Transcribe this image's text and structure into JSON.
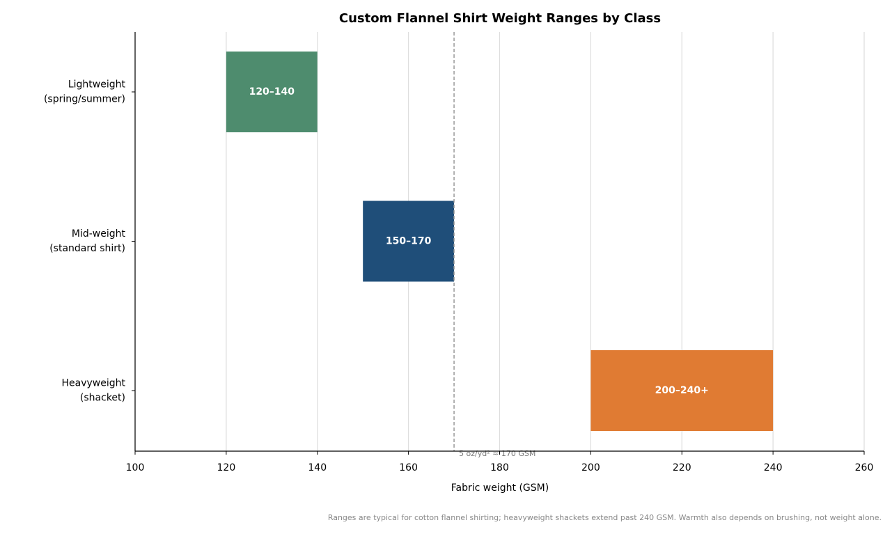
{
  "chart_data": {
    "type": "range-bar",
    "title": "Custom Flannel Shirt Weight Ranges by Class",
    "categories": [
      [
        "Lightweight",
        "(spring/summer)"
      ],
      [
        "Mid-weight",
        "(standard shirt)"
      ],
      [
        "Heavyweight",
        "(shacket)"
      ]
    ],
    "starts": [
      120,
      150,
      200
    ],
    "ends": [
      140,
      170,
      240
    ],
    "value_labels": [
      "120–140",
      "150–170",
      "200–240+"
    ],
    "colors": [
      "#4e8c6e",
      "#1f4e79",
      "#e07b33"
    ],
    "xlim": [
      100,
      260
    ],
    "xticks": [
      100,
      120,
      140,
      160,
      180,
      200,
      220,
      240,
      260
    ],
    "xlabel": "Fabric weight (GSM)",
    "grid": true,
    "reference_line": {
      "value": 170,
      "label": "5 oz/yd² ≈ 170 GSM"
    },
    "footnote": "Ranges are typical for cotton flannel shirting; heavyweight shackets extend past 240 GSM. Warmth also depends on brushing, not weight alone."
  }
}
